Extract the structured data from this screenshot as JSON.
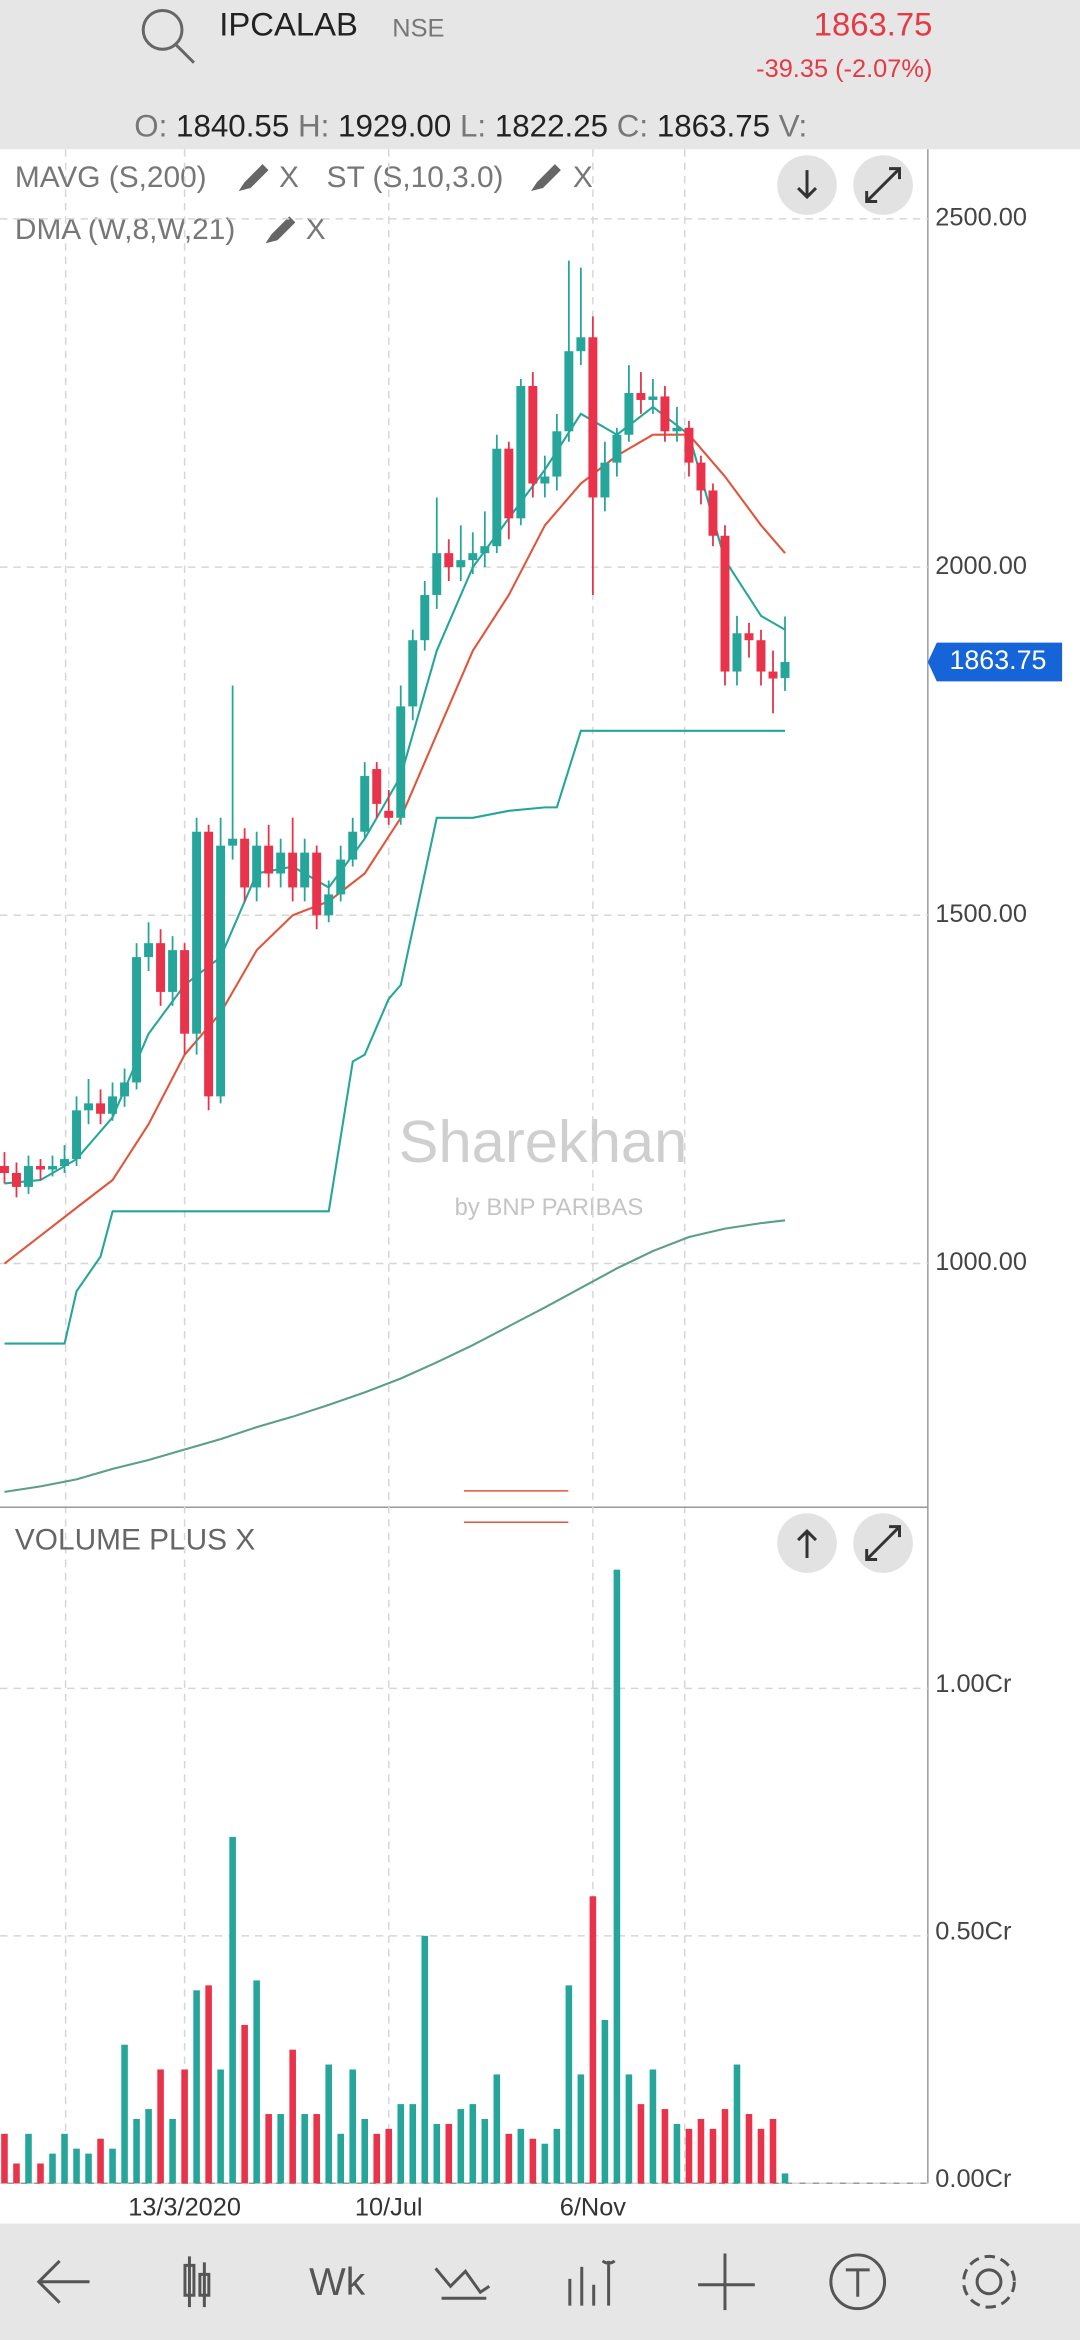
{
  "header": {
    "symbol": "IPCALAB",
    "exchange": "NSE",
    "price": "1863.75",
    "change": "-39.35 (-2.07%)",
    "ohlc": [
      {
        "label": "O:",
        "value": "1840.55"
      },
      {
        "label": "H:",
        "value": "1929.00"
      },
      {
        "label": "L:",
        "value": "1822.25"
      },
      {
        "label": "C:",
        "value": "1863.75"
      }
    ],
    "volume_label": "V:"
  },
  "chart_data": [
    {
      "type": "candlestick",
      "indicators": [
        {
          "label": "MAVG (S,200)",
          "remove": "X"
        },
        {
          "label": "ST (S,10,3.0)",
          "remove": "X"
        },
        {
          "label": "DMA (W,8,W,21)",
          "remove": "X"
        }
      ],
      "watermark": "Sharekhan",
      "watermark_sub": "by BNP PARIBAS",
      "categories": [
        null,
        null,
        null,
        null,
        null,
        null,
        null,
        null,
        null,
        null,
        null,
        null,
        null,
        null,
        null,
        "13/3/2020",
        null,
        null,
        null,
        null,
        null,
        null,
        null,
        null,
        null,
        null,
        null,
        null,
        null,
        null,
        null,
        null,
        "10/Jul",
        null,
        null,
        null,
        null,
        null,
        null,
        null,
        null,
        null,
        null,
        null,
        null,
        null,
        null,
        null,
        null,
        "6/Nov",
        null,
        null,
        null,
        null,
        null,
        null,
        null,
        null,
        null,
        null,
        null,
        null,
        null,
        null,
        null,
        null
      ],
      "open": [
        1140,
        1130,
        1110,
        1140,
        1135,
        1140,
        1150,
        1220,
        1230,
        1215,
        1240,
        1260,
        1440,
        1460,
        1390,
        1450,
        1330,
        1620,
        1240,
        1600,
        1610,
        1540,
        1600,
        1560,
        1590,
        1540,
        1590,
        1500,
        1530,
        1580,
        1620,
        1710,
        1650,
        1640,
        1800,
        1895,
        1960,
        2020,
        2000,
        2010,
        2020,
        2030,
        2170,
        2070,
        2260,
        2120,
        2130,
        2195,
        2310,
        2330,
        2100,
        2150,
        2190,
        2250,
        2240,
        2245,
        2195,
        2200,
        2150,
        2110,
        2045,
        1850,
        1905,
        1895,
        1850,
        1840.55
      ],
      "high": [
        1160,
        1145,
        1155,
        1150,
        1155,
        1170,
        1240,
        1265,
        1250,
        1260,
        1280,
        1460,
        1490,
        1480,
        1470,
        1460,
        1640,
        1630,
        1640,
        1830,
        1625,
        1620,
        1630,
        1610,
        1640,
        1610,
        1600,
        1550,
        1600,
        1640,
        1720,
        1720,
        1680,
        1830,
        1910,
        1980,
        2100,
        2040,
        2060,
        2050,
        2080,
        2190,
        2180,
        2270,
        2280,
        2160,
        2220,
        2440,
        2430,
        2360,
        2180,
        2200,
        2290,
        2280,
        2270,
        2260,
        2230,
        2210,
        2160,
        2120,
        2060,
        1930,
        1920,
        1910,
        1880,
        1929
      ],
      "low": [
        1115,
        1095,
        1100,
        1120,
        1125,
        1130,
        1140,
        1200,
        1200,
        1205,
        1225,
        1250,
        1420,
        1370,
        1370,
        1300,
        1300,
        1220,
        1230,
        1580,
        1520,
        1520,
        1540,
        1540,
        1520,
        1520,
        1480,
        1490,
        1520,
        1570,
        1610,
        1640,
        1630,
        1630,
        1780,
        1880,
        1940,
        1980,
        1980,
        1990,
        2000,
        2020,
        2040,
        2060,
        2100,
        2100,
        2110,
        2180,
        2290,
        1960,
        2080,
        2130,
        2180,
        2220,
        2220,
        2180,
        2180,
        2130,
        2090,
        2030,
        1830,
        1830,
        1870,
        1830,
        1790,
        1822.25
      ],
      "close": [
        1130,
        1110,
        1140,
        1135,
        1140,
        1150,
        1220,
        1230,
        1215,
        1240,
        1260,
        1440,
        1460,
        1390,
        1450,
        1330,
        1620,
        1240,
        1600,
        1610,
        1540,
        1600,
        1560,
        1590,
        1540,
        1590,
        1500,
        1530,
        1580,
        1620,
        1700,
        1660,
        1640,
        1800,
        1895,
        1960,
        2020,
        2000,
        2010,
        2020,
        2030,
        2170,
        2070,
        2260,
        2120,
        2130,
        2195,
        2310,
        2330,
        2100,
        2150,
        2190,
        2250,
        2240,
        2245,
        2195,
        2200,
        2150,
        2110,
        2045,
        1850,
        1905,
        1895,
        1850,
        1840,
        1863.75
      ],
      "up_color": "#26a69a",
      "down_color": "#e8334a",
      "lines": [
        {
          "color": "#26a69a",
          "x": [
            0,
            3,
            6,
            9,
            12,
            15,
            18,
            21,
            24,
            27,
            30,
            33,
            36,
            39,
            42,
            45,
            48,
            51,
            54,
            57,
            60,
            63,
            65
          ],
          "values": [
            1115,
            1120,
            1150,
            1210,
            1330,
            1400,
            1440,
            1560,
            1570,
            1540,
            1610,
            1700,
            1880,
            2000,
            2070,
            2140,
            2220,
            2190,
            2230,
            2190,
            2010,
            1930,
            1910
          ]
        },
        {
          "color": "#e0553c",
          "x": [
            0,
            3,
            6,
            9,
            12,
            15,
            18,
            21,
            24,
            27,
            30,
            33,
            36,
            39,
            42,
            45,
            48,
            51,
            54,
            57,
            60,
            63,
            65
          ],
          "values": [
            1000,
            1040,
            1080,
            1120,
            1200,
            1300,
            1360,
            1450,
            1500,
            1520,
            1560,
            1640,
            1760,
            1880,
            1960,
            2060,
            2120,
            2160,
            2190,
            2190,
            2130,
            2060,
            2020
          ]
        },
        {
          "color": "#26a69a",
          "x": [
            0,
            3,
            5,
            6,
            8,
            9,
            27,
            29,
            30,
            32,
            33,
            36,
            39,
            42,
            45,
            46,
            48,
            51,
            54,
            57,
            60,
            63,
            65
          ],
          "values": [
            885,
            885,
            885,
            960,
            1010,
            1075,
            1075,
            1290,
            1300,
            1380,
            1400,
            1640,
            1640,
            1650,
            1655,
            1655,
            1765,
            1765,
            1765,
            1765,
            1765,
            1765,
            1765
          ]
        },
        {
          "color": "#5b9e8a",
          "x": [
            0,
            3,
            6,
            9,
            12,
            15,
            18,
            21,
            24,
            27,
            30,
            33,
            36,
            39,
            42,
            45,
            48,
            51,
            54,
            57,
            60,
            63,
            65
          ],
          "values": [
            672,
            680,
            690,
            705,
            718,
            733,
            748,
            765,
            780,
            797,
            815,
            835,
            858,
            883,
            910,
            937,
            965,
            993,
            1018,
            1038,
            1050,
            1058,
            1062
          ]
        }
      ],
      "ylim": [
        650,
        2600
      ],
      "yticks": [
        {
          "value": 1000,
          "label": "1000.00"
        },
        {
          "value": 1500,
          "label": "1500.00"
        },
        {
          "value": 2000,
          "label": "2000.00"
        },
        {
          "value": 2500,
          "label": "2500.00"
        }
      ]
    },
    {
      "type": "bar",
      "title": "VOLUME PLUS X",
      "values": [
        0.1,
        0.04,
        0.1,
        0.04,
        0.06,
        0.1,
        0.07,
        0.06,
        0.09,
        0.07,
        0.28,
        0.13,
        0.15,
        0.23,
        0.13,
        0.23,
        0.39,
        0.4,
        0.23,
        0.7,
        0.32,
        0.41,
        0.14,
        0.14,
        0.27,
        0.14,
        0.14,
        0.24,
        0.1,
        0.23,
        0.13,
        0.1,
        0.11,
        0.16,
        0.16,
        0.5,
        0.12,
        0.12,
        0.15,
        0.16,
        0.13,
        0.22,
        0.1,
        0.11,
        0.09,
        0.08,
        0.11,
        0.4,
        0.22,
        0.58,
        0.33,
        1.24,
        0.22,
        0.16,
        0.23,
        0.15,
        0.12,
        0.11,
        0.13,
        0.11,
        0.15,
        0.24,
        0.14,
        0.11,
        0.13,
        0.02
      ],
      "ylim": [
        0,
        1.36
      ],
      "yticks": [
        {
          "value": 0,
          "label": "0.00Cr"
        },
        {
          "value": 0.5,
          "label": "0.50Cr"
        },
        {
          "value": 1,
          "label": "1.00Cr"
        }
      ]
    }
  ],
  "nav": {
    "interval": "Wk"
  }
}
